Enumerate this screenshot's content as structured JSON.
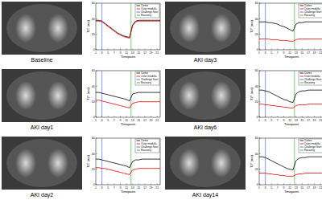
{
  "chart_data": [
    {
      "type": "line",
      "title": "Baseline",
      "x_label": "Timepoint",
      "y_label": "T2* (ms)",
      "x": [
        1,
        2,
        3,
        4,
        5,
        6,
        7,
        8,
        9,
        10,
        11,
        12,
        13,
        14,
        15,
        16,
        17,
        18,
        19,
        20,
        21,
        22
      ],
      "xlim": [
        1,
        22
      ],
      "xticks": [
        1,
        3,
        5,
        7,
        9,
        11,
        13,
        15,
        17,
        19,
        21
      ],
      "ylim": [
        0,
        60
      ],
      "yticks": [
        0,
        20,
        40,
        60
      ],
      "legend": "upper right",
      "series": [
        {
          "name": "Cortex",
          "color": "#000000",
          "values": [
            38,
            38,
            37,
            34,
            31,
            28,
            25,
            22,
            20,
            18,
            17,
            16,
            32,
            37,
            38,
            38,
            38,
            38,
            38,
            38,
            38,
            38
          ]
        },
        {
          "name": "Outer medulla",
          "color": "#e00000",
          "values": [
            37,
            37,
            36,
            33,
            30,
            27,
            24,
            21,
            19,
            17,
            16,
            15,
            31,
            36,
            37,
            37,
            37,
            37,
            37,
            37,
            37,
            37
          ]
        }
      ],
      "vlines": [
        {
          "name": "Challenge Start",
          "color": "#3355ff",
          "x": 3
        },
        {
          "name": "Recovery",
          "color": "#22aa22",
          "x": 12.5
        }
      ]
    },
    {
      "type": "line",
      "title": "AKI day1",
      "x_label": "Timepoint",
      "y_label": "T2* (ms)",
      "x": [
        1,
        2,
        3,
        4,
        5,
        6,
        7,
        8,
        9,
        10,
        11,
        12,
        13,
        14,
        15,
        16,
        17,
        18,
        19,
        20,
        21,
        22
      ],
      "xlim": [
        1,
        22
      ],
      "xticks": [
        1,
        3,
        5,
        7,
        9,
        11,
        13,
        15,
        17,
        19,
        21
      ],
      "ylim": [
        0,
        60
      ],
      "yticks": [
        0,
        20,
        40,
        60
      ],
      "legend": "upper right",
      "series": [
        {
          "name": "Cortex",
          "color": "#000000",
          "values": [
            32,
            32,
            31,
            30,
            29,
            28,
            27,
            26,
            25,
            24,
            23,
            21,
            30,
            31,
            32,
            32,
            32,
            32,
            32,
            32,
            32,
            32
          ]
        },
        {
          "name": "Outer medulla",
          "color": "#e00000",
          "values": [
            22,
            22,
            21,
            20,
            19,
            18,
            17,
            16,
            15,
            14,
            13,
            12,
            18,
            19,
            20,
            20,
            20,
            20,
            20,
            20,
            20,
            20
          ]
        }
      ],
      "vlines": [
        {
          "name": "Challenge Start",
          "color": "#3355ff",
          "x": 3
        },
        {
          "name": "Recovery",
          "color": "#22aa22",
          "x": 12.5
        }
      ]
    },
    {
      "type": "line",
      "title": "AKI day2",
      "x_label": "Timepoint",
      "y_label": "T2* (ms)",
      "x": [
        1,
        2,
        3,
        4,
        5,
        6,
        7,
        8,
        9,
        10,
        11,
        12,
        13,
        14,
        15,
        16,
        17,
        18,
        19,
        20,
        21,
        22
      ],
      "xlim": [
        1,
        22
      ],
      "xticks": [
        1,
        3,
        5,
        7,
        9,
        11,
        13,
        15,
        17,
        19,
        21
      ],
      "ylim": [
        0,
        60
      ],
      "yticks": [
        0,
        20,
        40,
        60
      ],
      "legend": "upper right",
      "series": [
        {
          "name": "Cortex",
          "color": "#000000",
          "values": [
            33,
            33,
            32,
            31,
            30,
            29,
            28,
            27,
            26,
            25,
            24,
            22,
            30,
            32,
            32,
            33,
            33,
            33,
            33,
            33,
            33,
            33
          ]
        },
        {
          "name": "Outer medulla",
          "color": "#e00000",
          "values": [
            22,
            22,
            21,
            21,
            20,
            19,
            18,
            17,
            16,
            15,
            14,
            13,
            19,
            20,
            21,
            21,
            21,
            21,
            21,
            21,
            21,
            21
          ]
        }
      ],
      "vlines": [
        {
          "name": "Challenge Start",
          "color": "#3355ff",
          "x": 3
        },
        {
          "name": "Recovery",
          "color": "#22aa22",
          "x": 12.5
        }
      ]
    },
    {
      "type": "line",
      "title": "AKI day3",
      "x_label": "Timepoint",
      "y_label": "T2* (ms)",
      "x": [
        1,
        2,
        3,
        4,
        5,
        6,
        7,
        8,
        9,
        10,
        11,
        12,
        13,
        14,
        15,
        16,
        17,
        18,
        19,
        20,
        21,
        22
      ],
      "xlim": [
        1,
        22
      ],
      "xticks": [
        1,
        3,
        5,
        7,
        9,
        11,
        13,
        15,
        17,
        19,
        21
      ],
      "ylim": [
        0,
        60
      ],
      "yticks": [
        0,
        20,
        40,
        60
      ],
      "legend": "upper right",
      "series": [
        {
          "name": "Cortex",
          "color": "#000000",
          "values": [
            36,
            36,
            36,
            35,
            35,
            34,
            33,
            31,
            30,
            28,
            26,
            24,
            33,
            35,
            35,
            36,
            36,
            36,
            36,
            36,
            36,
            36
          ]
        },
        {
          "name": "Outer medulla",
          "color": "#e00000",
          "values": [
            14,
            14,
            14,
            14,
            13,
            13,
            13,
            12,
            12,
            12,
            11,
            11,
            13,
            14,
            14,
            14,
            14,
            14,
            14,
            14,
            14,
            14
          ]
        }
      ],
      "vlines": [
        {
          "name": "Challenge Start",
          "color": "#3355ff",
          "x": 3
        },
        {
          "name": "Recovery",
          "color": "#22aa22",
          "x": 12.5
        }
      ]
    },
    {
      "type": "line",
      "title": "AKI day6",
      "x_label": "Timepoint",
      "y_label": "T2* (ms)",
      "x": [
        1,
        2,
        3,
        4,
        5,
        6,
        7,
        8,
        9,
        10,
        11,
        12,
        13,
        14,
        15,
        16,
        17,
        18,
        19,
        20,
        21,
        22
      ],
      "xlim": [
        1,
        22
      ],
      "xticks": [
        1,
        3,
        5,
        7,
        9,
        11,
        13,
        15,
        17,
        19,
        21
      ],
      "ylim": [
        0,
        60
      ],
      "yticks": [
        0,
        20,
        40,
        60
      ],
      "legend": "upper right",
      "series": [
        {
          "name": "Cortex",
          "color": "#000000",
          "values": [
            35,
            35,
            34,
            33,
            31,
            29,
            27,
            25,
            23,
            22,
            20,
            19,
            30,
            33,
            34,
            34,
            35,
            35,
            35,
            35,
            35,
            35
          ]
        },
        {
          "name": "Outer medulla",
          "color": "#e00000",
          "values": [
            17,
            17,
            16,
            16,
            15,
            15,
            14,
            14,
            13,
            13,
            12,
            12,
            15,
            16,
            16,
            16,
            17,
            17,
            17,
            17,
            17,
            17
          ]
        }
      ],
      "vlines": [
        {
          "name": "Challenge Start",
          "color": "#3355ff",
          "x": 3
        },
        {
          "name": "Recovery",
          "color": "#22aa22",
          "x": 12.5
        }
      ]
    },
    {
      "type": "line",
      "title": "AKI day14",
      "x_label": "Timepoint",
      "y_label": "T2* (ms)",
      "x": [
        1,
        2,
        3,
        4,
        5,
        6,
        7,
        8,
        9,
        10,
        11,
        12,
        13,
        14,
        15,
        16,
        17,
        18,
        19,
        20,
        21,
        22
      ],
      "xlim": [
        1,
        22
      ],
      "xticks": [
        1,
        3,
        5,
        7,
        9,
        11,
        13,
        15,
        17,
        19,
        21
      ],
      "ylim": [
        0,
        60
      ],
      "yticks": [
        0,
        20,
        40,
        60
      ],
      "legend": "upper right",
      "series": [
        {
          "name": "Cortex",
          "color": "#000000",
          "values": [
            36,
            36,
            35,
            33,
            31,
            29,
            27,
            25,
            23,
            21,
            20,
            19,
            31,
            34,
            35,
            35,
            36,
            36,
            36,
            36,
            36,
            36
          ]
        },
        {
          "name": "Outer medulla",
          "color": "#e00000",
          "values": [
            15,
            15,
            15,
            14,
            14,
            13,
            13,
            12,
            12,
            11,
            11,
            11,
            13,
            14,
            14,
            15,
            15,
            15,
            15,
            15,
            15,
            15
          ]
        }
      ],
      "vlines": [
        {
          "name": "Challenge Start",
          "color": "#3355ff",
          "x": 3
        },
        {
          "name": "Recovery",
          "color": "#22aa22",
          "x": 12.5
        }
      ]
    }
  ]
}
